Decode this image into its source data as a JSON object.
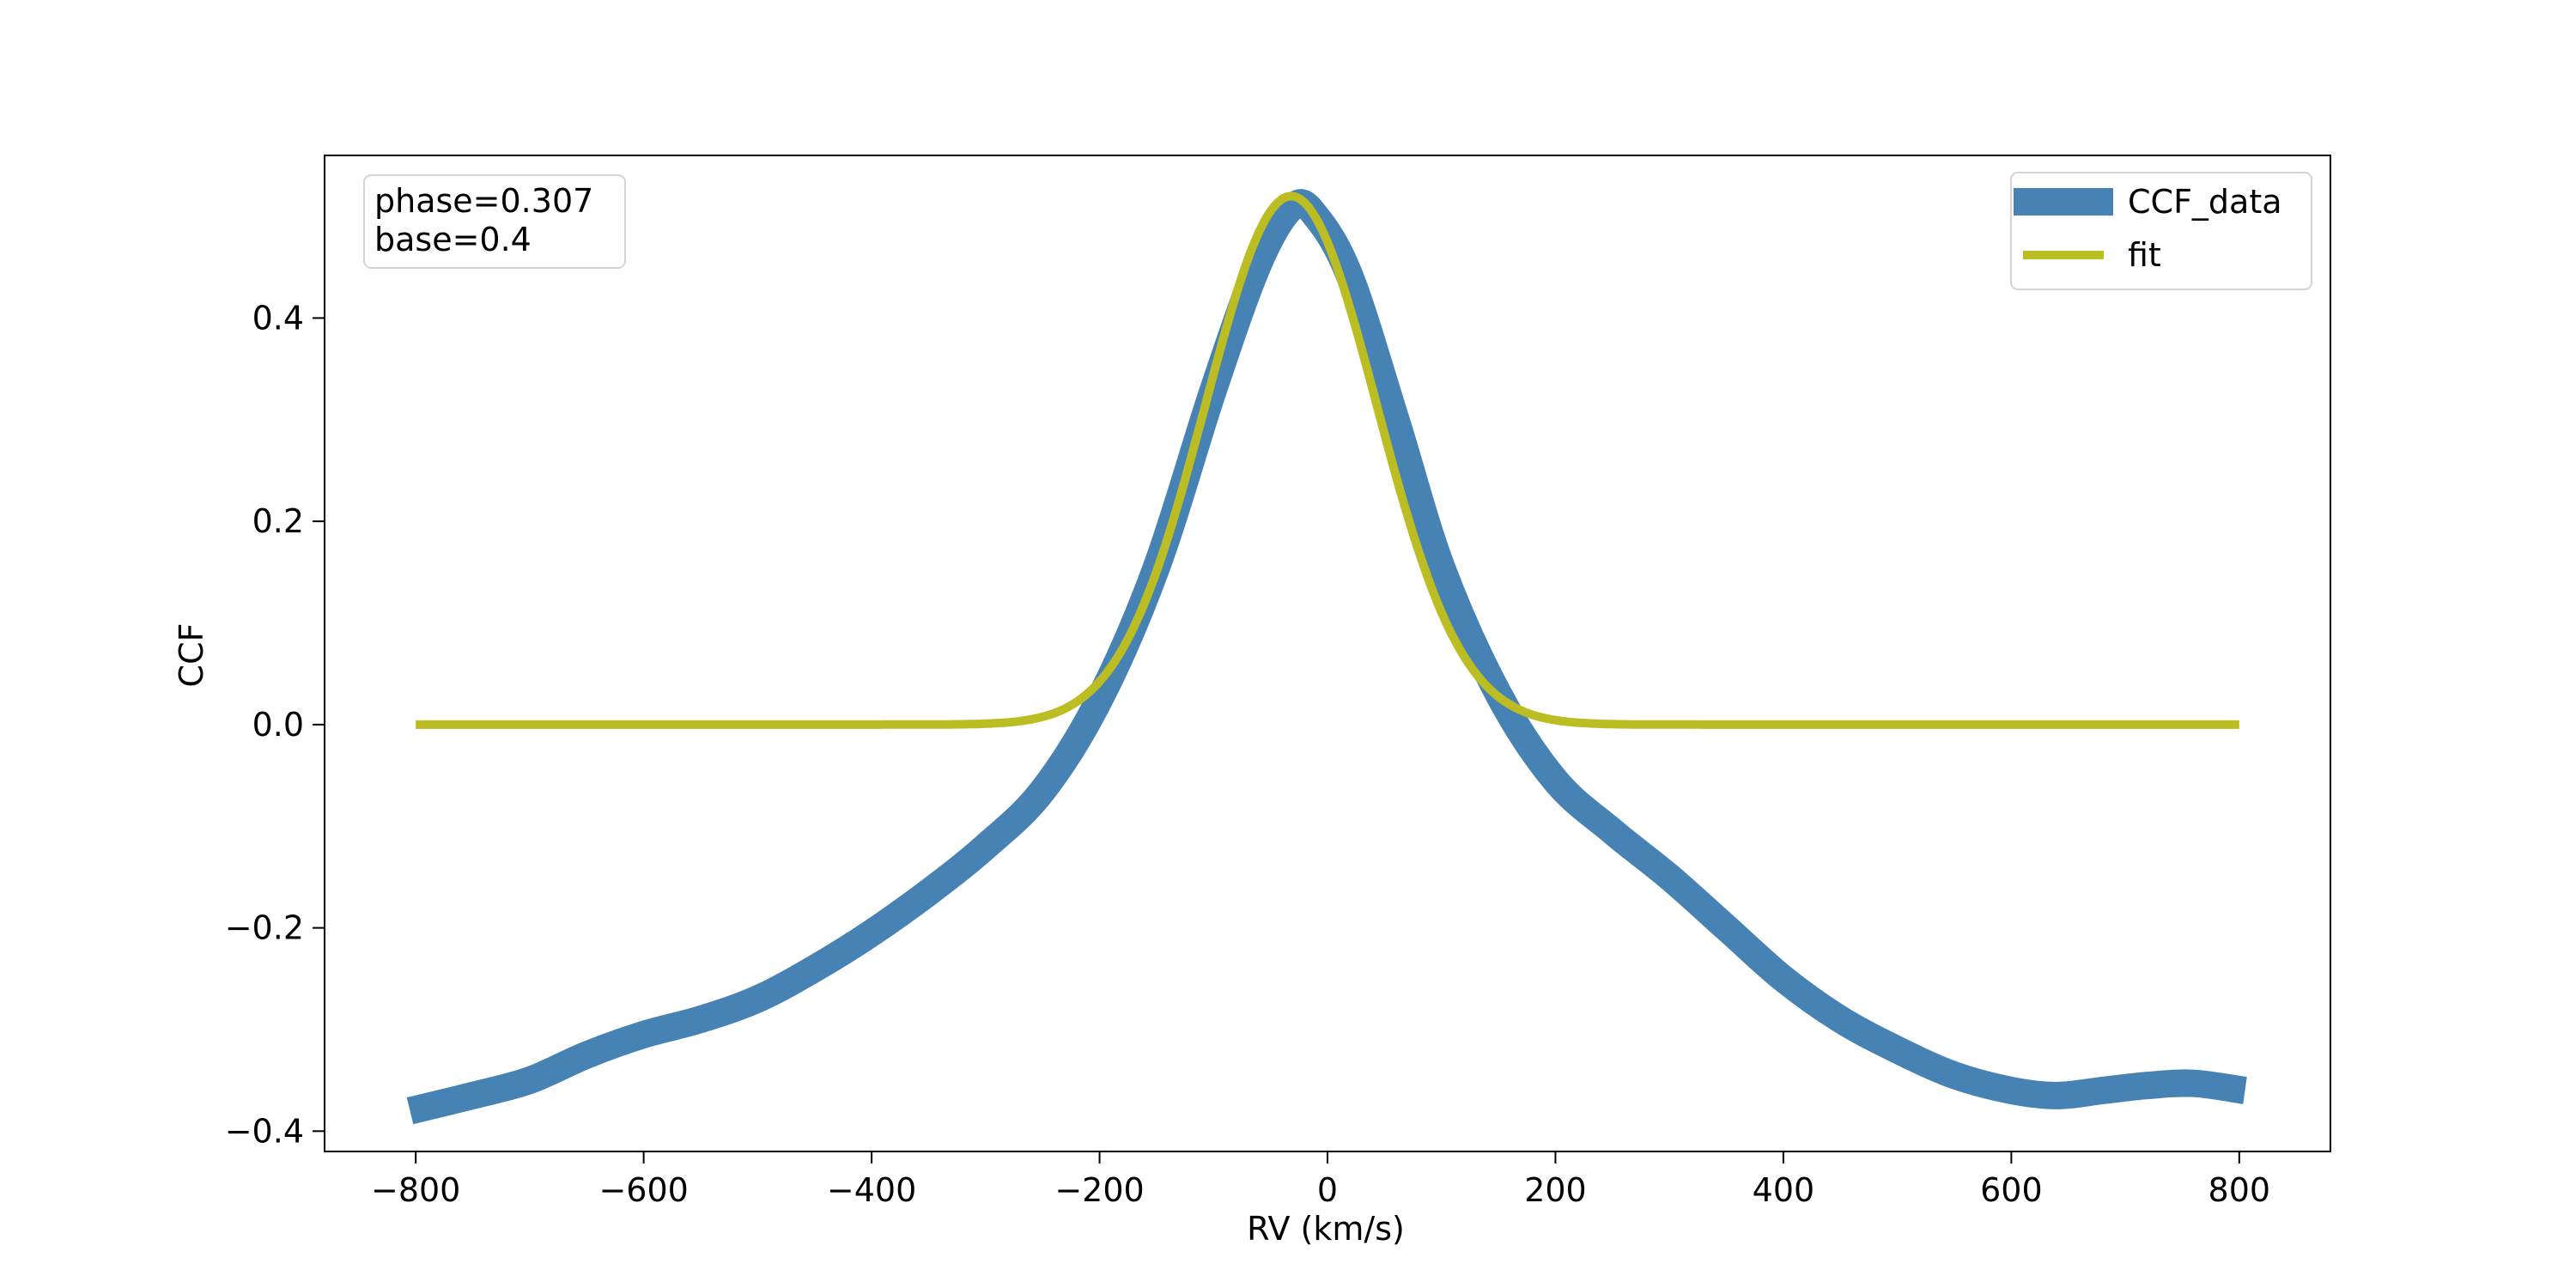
{
  "chart_data": {
    "type": "line",
    "xlabel": "RV (km/s)",
    "ylabel": "CCF",
    "xlim": [
      -880,
      880
    ],
    "ylim": [
      -0.42,
      0.56
    ],
    "xticks": [
      -800,
      -600,
      -400,
      -200,
      0,
      200,
      400,
      600,
      800
    ],
    "xtick_labels": [
      "−800",
      "−600",
      "−400",
      "−200",
      "0",
      "200",
      "400",
      "600",
      "800"
    ],
    "yticks": [
      -0.4,
      -0.2,
      0.0,
      0.2,
      0.4
    ],
    "ytick_labels": [
      "−0.4",
      "−0.2",
      "0.0",
      "0.2",
      "0.4"
    ],
    "grid": false,
    "legend_position": "top-right",
    "annotation": {
      "lines": [
        "phase=0.307",
        "base=0.4"
      ],
      "position": "top-left"
    },
    "series": [
      {
        "name": "CCF_data",
        "color": "#4682b4",
        "style": "thick",
        "x": [
          -805,
          -750,
          -700,
          -650,
          -600,
          -550,
          -500,
          -450,
          -400,
          -350,
          -300,
          -250,
          -200,
          -150,
          -100,
          -60,
          -30,
          -10,
          20,
          60,
          100,
          150,
          200,
          250,
          300,
          350,
          400,
          450,
          500,
          550,
          600,
          640,
          680,
          720,
          760,
          805
        ],
        "y": [
          -0.38,
          -0.365,
          -0.35,
          -0.325,
          -0.305,
          -0.29,
          -0.27,
          -0.24,
          -0.205,
          -0.165,
          -0.12,
          -0.065,
          0.025,
          0.155,
          0.33,
          0.455,
          0.51,
          0.5,
          0.44,
          0.3,
          0.155,
          0.03,
          -0.055,
          -0.105,
          -0.15,
          -0.2,
          -0.25,
          -0.29,
          -0.32,
          -0.345,
          -0.36,
          -0.365,
          -0.36,
          -0.355,
          -0.353,
          -0.36
        ]
      },
      {
        "name": "fit",
        "color": "#bcbd22",
        "style": "thin",
        "model": "gaussian",
        "amplitude": 0.52,
        "center": -32,
        "sigma": 75,
        "x_range": [
          -800,
          800
        ]
      }
    ]
  }
}
